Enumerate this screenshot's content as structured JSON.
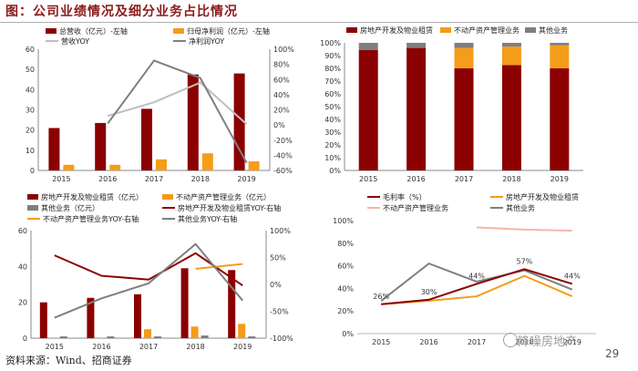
{
  "page": {
    "title": "图：公司业绩情况及细分业务占比情况",
    "source": "资料来源：Wind、招商证券",
    "watermark": "降噪房地产",
    "page_number": "29",
    "colors": {
      "dark_red": "#8b0000",
      "orange": "#f59c1a",
      "gray": "#7f7f7f",
      "light_gray": "#bfbfbf",
      "light_pink": "#f4b8a6",
      "title": "#8b1a1a"
    }
  },
  "chart_data": [
    {
      "id": "chart1",
      "type": "bar",
      "categories": [
        "2015",
        "2016",
        "2017",
        "2018",
        "2019"
      ],
      "series": [
        {
          "name": "总营收（亿元）-左轴",
          "kind": "bar",
          "axis": "left",
          "color": "#8b0000",
          "values": [
            21,
            23.5,
            30.5,
            47.5,
            48
          ]
        },
        {
          "name": "归母净利润（亿元）-左轴",
          "kind": "bar",
          "axis": "left",
          "color": "#f59c1a",
          "values": [
            2.8,
            2.8,
            5.5,
            8.5,
            4.5
          ]
        },
        {
          "name": "营收YOY",
          "kind": "line",
          "axis": "right",
          "color": "#bfbfbf",
          "values": [
            null,
            12,
            30,
            56,
            1
          ]
        },
        {
          "name": "净利润YOY",
          "kind": "line",
          "axis": "right",
          "color": "#7f7f7f",
          "values": [
            null,
            2,
            85,
            62,
            -50
          ]
        }
      ],
      "ylim_left": [
        0,
        60
      ],
      "yticks_left": [
        "0",
        "10",
        "20",
        "30",
        "40",
        "50",
        "60"
      ],
      "ylim_right": [
        -60,
        100
      ],
      "yticks_right": [
        "-60%",
        "-40%",
        "-20%",
        "0%",
        "20%",
        "40%",
        "60%",
        "80%",
        "100%"
      ]
    },
    {
      "id": "chart2",
      "type": "bar",
      "stacked": true,
      "categories": [
        "2015",
        "2016",
        "2017",
        "2018",
        "2019"
      ],
      "series": [
        {
          "name": "房地产开发及物业租赁",
          "color": "#8b0000",
          "values": [
            94.5,
            96,
            80,
            82.5,
            80
          ]
        },
        {
          "name": "不动产资产管理业务",
          "color": "#f59c1a",
          "values": [
            0,
            0,
            16,
            14.5,
            18
          ]
        },
        {
          "name": "其他业务",
          "color": "#7f7f7f",
          "values": [
            5.5,
            4,
            4,
            3,
            2
          ]
        }
      ],
      "ylim": [
        0,
        100
      ],
      "yticks": [
        "0%",
        "10%",
        "20%",
        "30%",
        "40%",
        "50%",
        "60%",
        "70%",
        "80%",
        "90%",
        "100%"
      ]
    },
    {
      "id": "chart3",
      "type": "bar",
      "categories": [
        "2015",
        "2016",
        "2017",
        "2018",
        "2019"
      ],
      "series": [
        {
          "name": "房地产开发及物业租赁（亿元）",
          "kind": "bar",
          "axis": "left",
          "color": "#8b0000",
          "values": [
            20,
            22.5,
            24.5,
            39,
            38
          ]
        },
        {
          "name": "不动产资产管理业务（亿元）",
          "kind": "bar",
          "axis": "left",
          "color": "#f59c1a",
          "values": [
            0,
            0,
            5,
            6.5,
            8
          ]
        },
        {
          "name": "其他业务（亿元）",
          "kind": "bar",
          "axis": "left",
          "color": "#7f7f7f",
          "values": [
            1,
            1,
            1,
            1.5,
            1
          ]
        },
        {
          "name": "房地产开发及物业租赁YOY-右轴",
          "kind": "line",
          "axis": "right",
          "color": "#8b0000",
          "values": [
            54,
            16,
            9,
            58,
            -2
          ]
        },
        {
          "name": "不动产资产管理业务YOY-右轴",
          "kind": "line",
          "axis": "right",
          "color": "#f59c1a",
          "values": [
            null,
            null,
            null,
            29,
            38
          ]
        },
        {
          "name": "其他业务YOY-右轴",
          "kind": "line",
          "axis": "right",
          "color": "#7f7f7f",
          "values": [
            -62,
            -26,
            2,
            75,
            -30
          ]
        }
      ],
      "ylim_left": [
        0,
        60
      ],
      "yticks_left": [
        "0",
        "20",
        "40",
        "60"
      ],
      "ylim_right": [
        -100,
        100
      ],
      "yticks_right": [
        "-100%",
        "-50%",
        "0%",
        "50%",
        "100%"
      ]
    },
    {
      "id": "chart4",
      "type": "line",
      "categories": [
        "2015",
        "2016",
        "2017",
        "2018",
        "2019"
      ],
      "series": [
        {
          "name": "毛利率（%）",
          "color": "#8b0000",
          "values": [
            26,
            30,
            44,
            57,
            44
          ],
          "labels": [
            "26%",
            "30%",
            "44%",
            "57%",
            "44%"
          ]
        },
        {
          "name": "房地产开发及物业租赁",
          "color": "#f59c1a",
          "values": [
            26,
            29,
            33,
            51,
            33
          ]
        },
        {
          "name": "不动产资产管理业务",
          "color": "#f4b8a6",
          "values": [
            null,
            null,
            94,
            92,
            91
          ]
        },
        {
          "name": "其他业务",
          "color": "#7f7f7f",
          "values": [
            29,
            62,
            46,
            56,
            39
          ]
        }
      ],
      "ylim": [
        0,
        100
      ],
      "yticks": [
        "0%",
        "20%",
        "40%",
        "60%",
        "80%",
        "100%"
      ]
    }
  ]
}
